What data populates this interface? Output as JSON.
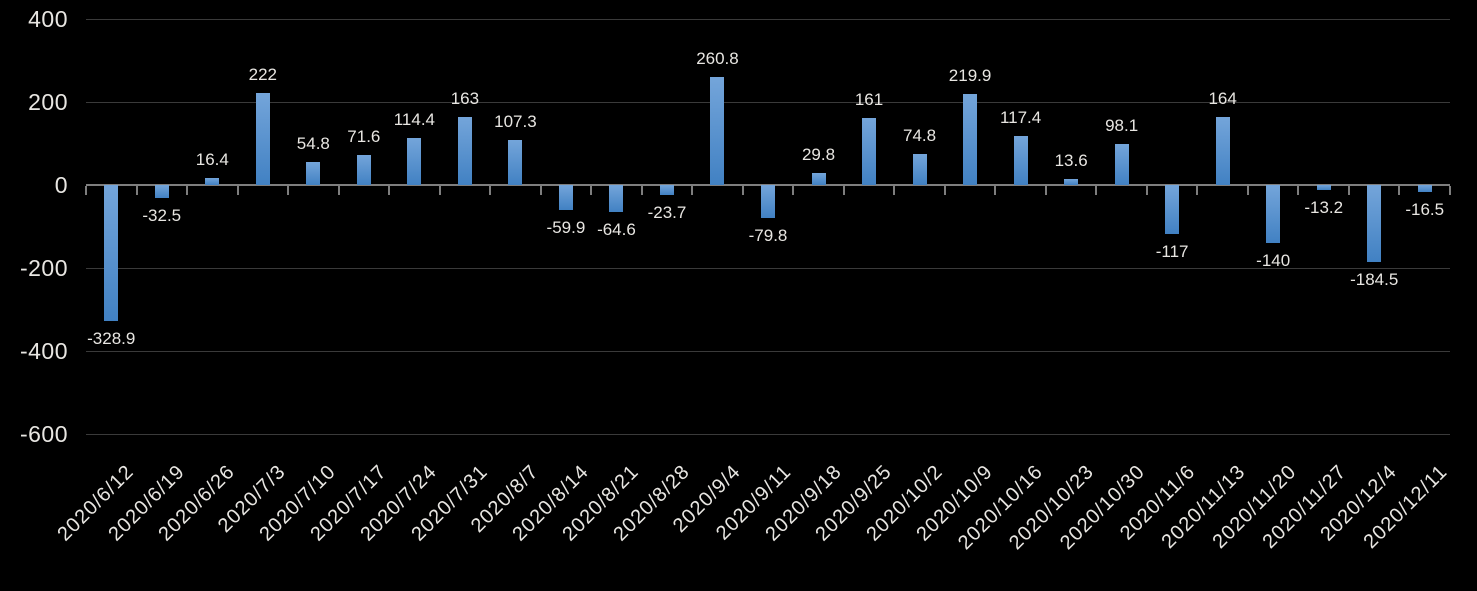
{
  "chart_data": {
    "type": "bar",
    "title": "",
    "xlabel": "",
    "ylabel": "",
    "categories": [
      "2020/6/12",
      "2020/6/19",
      "2020/6/26",
      "2020/7/3",
      "2020/7/10",
      "2020/7/17",
      "2020/7/24",
      "2020/7/31",
      "2020/8/7",
      "2020/8/14",
      "2020/8/21",
      "2020/8/28",
      "2020/9/4",
      "2020/9/11",
      "2020/9/18",
      "2020/9/25",
      "2020/10/2",
      "2020/10/9",
      "2020/10/16",
      "2020/10/23",
      "2020/10/30",
      "2020/11/6",
      "2020/11/13",
      "2020/11/20",
      "2020/11/27",
      "2020/12/4",
      "2020/12/11"
    ],
    "values": [
      -328.9,
      -32.5,
      16.4,
      222,
      54.8,
      71.6,
      114.4,
      163,
      107.3,
      -59.9,
      -64.6,
      -23.7,
      260.8,
      -79.8,
      29.8,
      161,
      74.8,
      219.9,
      117.4,
      13.6,
      98.1,
      -117,
      164,
      -140,
      -13.2,
      -184.5,
      -16.5
    ],
    "y_ticks": [
      400,
      200,
      0,
      -200,
      -400,
      -600
    ],
    "ylim": [
      -600,
      400
    ],
    "grid": true,
    "legend": false,
    "data_labels": "outside-end",
    "x_label_rotation_deg": -45,
    "colors": {
      "background": "#000000",
      "bar_gradient_top": "#74A5DA",
      "bar_gradient_bottom": "#4181C3",
      "gridline": "#3A3A3A",
      "axis_line": "#7E7E7E",
      "tick": "#7E7E7E",
      "text": "#E8E6E2"
    }
  }
}
